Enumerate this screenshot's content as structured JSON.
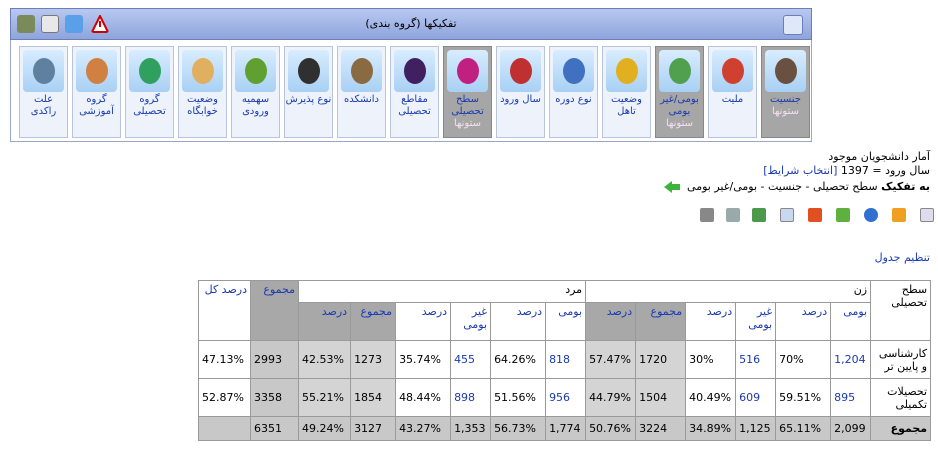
{
  "toolbar": {
    "title": "تفکیکها (گروه بندی)"
  },
  "buttons": [
    {
      "label": "جنسیت",
      "sub": "ستونها"
    },
    {
      "label": "ملیت"
    },
    {
      "label": "بومی/غیر بومی",
      "sub": "ستونها"
    },
    {
      "label": "وضعیت تاهل"
    },
    {
      "label": "نوع دوره"
    },
    {
      "label": "سال ورود"
    },
    {
      "label": "سطح تحصیلی",
      "sub": "ستونها"
    },
    {
      "label": "مقاطع تحصیلی"
    },
    {
      "label": "دانشکده"
    },
    {
      "label": "نوع پذیرش"
    },
    {
      "label": "سهمیه ورودی"
    },
    {
      "label": "وضعیت خوابگاه"
    },
    {
      "label": "گروه تحصیلی"
    },
    {
      "label": "گروه آموزشی"
    },
    {
      "label": "علت راکدی"
    }
  ],
  "info": {
    "heading": "آمار دانشجویان موجود",
    "filter": "سال ورود = 1397",
    "filter_link": "[انتخاب شرایط]",
    "breakdown_label": "به تفکیک",
    "breakdown": "سطح تحصیلی - جنسیت - بومی/غیر بومی"
  },
  "table_settings": "تنظیم جدول",
  "table": {
    "corner": "سطح تحصیلی",
    "groups": [
      {
        "name": "زن",
        "columns": [
          "بومی",
          "درصد",
          "غیر بومی",
          "درصد",
          "مجموع",
          "درصد"
        ]
      },
      {
        "name": "مرد",
        "columns": [
          "بومی",
          "درصد",
          "غیر بومی",
          "درصد",
          "مجموع",
          "درصد"
        ]
      }
    ],
    "total": "مجموع",
    "total_percent": "درصد کل",
    "rows": [
      [
        "کارشناسی و پایین تر",
        "1,204",
        "70%",
        "516",
        "30%",
        "1720",
        "57.47%",
        "818",
        "64.26%",
        "455",
        "35.74%",
        "1273",
        "42.53%",
        "2993",
        "47.13%"
      ],
      [
        "تحصیلات تکمیلی",
        "895",
        "59.51%",
        "609",
        "40.49%",
        "1504",
        "44.79%",
        "956",
        "51.56%",
        "898",
        "48.44%",
        "1854",
        "55.21%",
        "3358",
        "52.87%"
      ],
      [
        "مجموع",
        "2,099",
        "65.11%",
        "1,125",
        "34.89%",
        "3224",
        "50.76%",
        "1,774",
        "56.73%",
        "1,353",
        "43.27%",
        "3127",
        "49.24%",
        "6351"
      ]
    ]
  }
}
